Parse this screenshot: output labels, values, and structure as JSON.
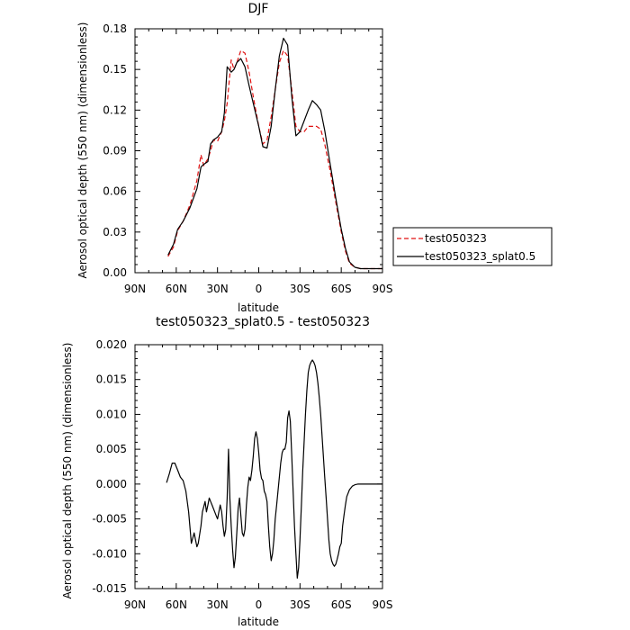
{
  "chart_data": [
    {
      "type": "line",
      "title": "DJF",
      "xlabel": "latitude",
      "ylabel": "Aerosol optical depth (550 nm) (dimensionless)",
      "xlim": [
        -90,
        90
      ],
      "ylim": [
        0,
        0.18
      ],
      "x_ticks": [
        -90,
        -60,
        -30,
        0,
        30,
        60,
        90
      ],
      "x_tick_labels": [
        "90N",
        "60N",
        "30N",
        "0",
        "30S",
        "60S",
        "90S"
      ],
      "y_ticks": [
        0,
        0.03,
        0.06,
        0.09,
        0.12,
        0.15,
        0.18
      ],
      "y_tick_labels": [
        "0.00",
        "0.03",
        "0.06",
        "0.09",
        "0.12",
        "0.15",
        "0.18"
      ],
      "legend": "outside-right",
      "series": [
        {
          "name": "test050323",
          "color": "#e01010",
          "dash": "dashed",
          "x": [
            -66,
            -62,
            -59,
            -55,
            -50,
            -45,
            -42,
            -40,
            -37,
            -35,
            -33,
            -30,
            -27,
            -25,
            -23,
            -20,
            -18,
            -16,
            -13,
            -10,
            -7,
            -4,
            0,
            3,
            6,
            9,
            12,
            15,
            18,
            21,
            24,
            27,
            30,
            33,
            36,
            39,
            42,
            45,
            48,
            52,
            56,
            60,
            63,
            66,
            70,
            74,
            78,
            82,
            86,
            90
          ],
          "values": [
            0.012,
            0.019,
            0.031,
            0.038,
            0.05,
            0.068,
            0.087,
            0.079,
            0.084,
            0.09,
            0.098,
            0.097,
            0.104,
            0.112,
            0.125,
            0.157,
            0.15,
            0.155,
            0.164,
            0.162,
            0.148,
            0.13,
            0.108,
            0.095,
            0.098,
            0.115,
            0.135,
            0.155,
            0.164,
            0.16,
            0.135,
            0.108,
            0.104,
            0.104,
            0.108,
            0.108,
            0.108,
            0.106,
            0.095,
            0.075,
            0.052,
            0.03,
            0.016,
            0.007,
            0.004,
            0.003,
            0.003,
            0.003,
            0.003,
            0.003
          ]
        },
        {
          "name": "test050323_splat0.5",
          "color": "#000000",
          "dash": "solid",
          "x": [
            -66,
            -62,
            -59,
            -55,
            -50,
            -45,
            -42,
            -40,
            -37,
            -35,
            -33,
            -30,
            -27,
            -25,
            -23,
            -20,
            -18,
            -16,
            -13,
            -10,
            -7,
            -4,
            0,
            3,
            6,
            9,
            12,
            15,
            18,
            21,
            24,
            27,
            30,
            33,
            36,
            39,
            42,
            45,
            48,
            52,
            56,
            60,
            63,
            66,
            70,
            74,
            78,
            82,
            86,
            90
          ],
          "values": [
            0.013,
            0.021,
            0.032,
            0.038,
            0.048,
            0.062,
            0.078,
            0.08,
            0.082,
            0.095,
            0.098,
            0.1,
            0.104,
            0.118,
            0.152,
            0.148,
            0.15,
            0.155,
            0.158,
            0.152,
            0.138,
            0.125,
            0.108,
            0.093,
            0.092,
            0.108,
            0.135,
            0.16,
            0.173,
            0.168,
            0.13,
            0.101,
            0.104,
            0.112,
            0.12,
            0.127,
            0.124,
            0.12,
            0.105,
            0.08,
            0.055,
            0.032,
            0.018,
            0.008,
            0.004,
            0.003,
            0.003,
            0.003,
            0.003,
            0.003
          ]
        }
      ]
    },
    {
      "type": "line",
      "title": "test050323_splat0.5 - test050323",
      "xlabel": "latitude",
      "ylabel": "Aerosol optical depth (550 nm) (dimensionless)",
      "xlim": [
        -90,
        90
      ],
      "ylim": [
        -0.015,
        0.02
      ],
      "x_ticks": [
        -90,
        -60,
        -30,
        0,
        30,
        60,
        90
      ],
      "x_tick_labels": [
        "90N",
        "60N",
        "30N",
        "0",
        "30S",
        "60S",
        "90S"
      ],
      "y_ticks": [
        -0.015,
        -0.01,
        -0.005,
        0,
        0.005,
        0.01,
        0.015,
        0.02
      ],
      "y_tick_labels": [
        "-0.015",
        "-0.010",
        "-0.005",
        "0.000",
        "0.005",
        "0.010",
        "0.015",
        "0.020"
      ],
      "series": [
        {
          "color": "#000000",
          "dash": "solid",
          "x": [
            -67,
            -65,
            -63,
            -61,
            -59,
            -57,
            -55,
            -53,
            -51,
            -49,
            -47,
            -45,
            -44,
            -42,
            -41,
            -39,
            -38,
            -37,
            -36,
            -35,
            -34,
            -33,
            -32,
            -31,
            -30,
            -29,
            -28,
            -27,
            -26,
            -25,
            -24,
            -23,
            -22,
            -21,
            -20,
            -19,
            -18,
            -17,
            -16,
            -15,
            -14,
            -13,
            -12,
            -11,
            -10,
            -9,
            -8,
            -7,
            -6,
            -5,
            -4,
            -3,
            -2,
            -1,
            0,
            1,
            2,
            3,
            4,
            5,
            6,
            7,
            8,
            9,
            10,
            11,
            12,
            13,
            14,
            15,
            16,
            17,
            18,
            19,
            20,
            21,
            22,
            23,
            24,
            25,
            26,
            27,
            28,
            29,
            30,
            31,
            32,
            33,
            34,
            35,
            36,
            37,
            38,
            39,
            40,
            41,
            42,
            43,
            44,
            45,
            46,
            47,
            48,
            49,
            50,
            51,
            52,
            53,
            54,
            55,
            56,
            57,
            58,
            59,
            60,
            61,
            62,
            63,
            64,
            66,
            68,
            70,
            72,
            74,
            76,
            78,
            80,
            82,
            84,
            86,
            88,
            90
          ],
          "values": [
            0.0002,
            0.0015,
            0.003,
            0.003,
            0.002,
            0.001,
            0.0005,
            -0.001,
            -0.004,
            -0.0085,
            -0.007,
            -0.009,
            -0.0085,
            -0.006,
            -0.004,
            -0.0025,
            -0.004,
            -0.003,
            -0.002,
            -0.0025,
            -0.003,
            -0.0035,
            -0.004,
            -0.0045,
            -0.005,
            -0.004,
            -0.003,
            -0.004,
            -0.006,
            -0.0075,
            -0.0065,
            -0.002,
            0.005,
            -0.002,
            -0.006,
            -0.0095,
            -0.012,
            -0.0105,
            -0.007,
            -0.0035,
            -0.002,
            -0.0045,
            -0.007,
            -0.0075,
            -0.0065,
            -0.003,
            -0.0005,
            0.001,
            0.0005,
            0.002,
            0.004,
            0.0065,
            0.0075,
            0.0065,
            0.0045,
            0.002,
            0.0008,
            0.0005,
            -0.001,
            -0.0015,
            -0.0025,
            -0.006,
            -0.009,
            -0.011,
            -0.01,
            -0.008,
            -0.005,
            -0.003,
            -0.001,
            0.001,
            0.003,
            0.0045,
            0.005,
            0.005,
            0.006,
            0.0095,
            0.0105,
            0.009,
            0.004,
            -0.001,
            -0.006,
            -0.01,
            -0.0135,
            -0.012,
            -0.008,
            -0.003,
            0.002,
            0.006,
            0.01,
            0.0135,
            0.016,
            0.017,
            0.0175,
            0.0178,
            0.0175,
            0.017,
            0.016,
            0.0145,
            0.0125,
            0.01,
            0.007,
            0.004,
            0.001,
            -0.002,
            -0.005,
            -0.008,
            -0.01,
            -0.011,
            -0.0115,
            -0.0118,
            -0.0115,
            -0.0108,
            -0.01,
            -0.009,
            -0.0085,
            -0.006,
            -0.0045,
            -0.003,
            -0.0018,
            -0.0008,
            -0.0003,
            -0.0001,
            0.0,
            0.0,
            0.0,
            0.0,
            0.0,
            0.0,
            0.0,
            0.0,
            0.0,
            0.0
          ]
        }
      ]
    }
  ]
}
